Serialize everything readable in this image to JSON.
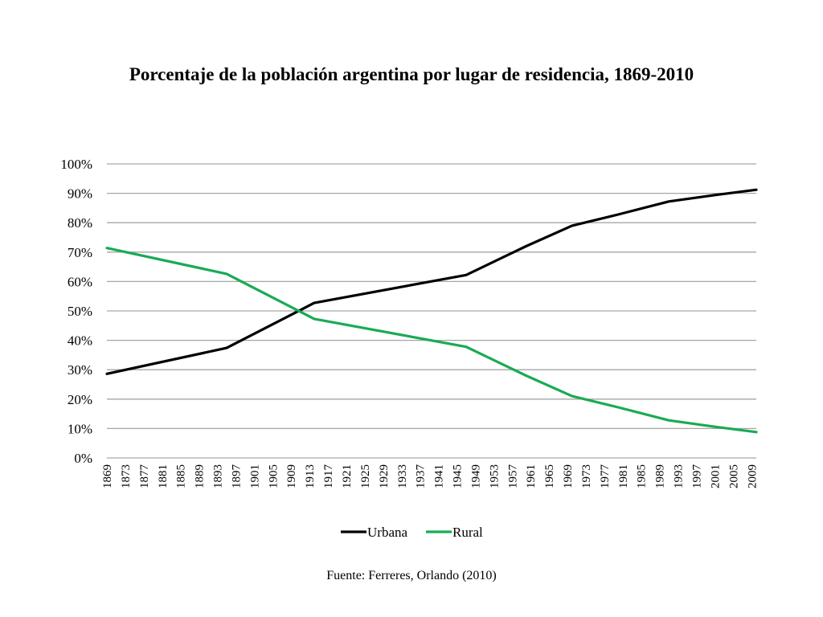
{
  "chart_data": {
    "type": "line",
    "title": "Porcentaje de la población argentina por lugar de residencia, 1869-2010",
    "source": "Fuente: Ferreres, Orlando (2010)",
    "xlabel": "",
    "ylabel": "",
    "ylim": [
      0,
      100
    ],
    "y_ticks": [
      "0%",
      "10%",
      "20%",
      "30%",
      "40%",
      "50%",
      "60%",
      "70%",
      "80%",
      "90%",
      "100%"
    ],
    "x_range": [
      1869,
      2010
    ],
    "x_ticks": [
      "1869",
      "1873",
      "1877",
      "1881",
      "1885",
      "1889",
      "1893",
      "1897",
      "1901",
      "1905",
      "1909",
      "1913",
      "1917",
      "1921",
      "1925",
      "1929",
      "1933",
      "1937",
      "1941",
      "1945",
      "1949",
      "1953",
      "1957",
      "1961",
      "1965",
      "1969",
      "1973",
      "1977",
      "1981",
      "1985",
      "1989",
      "1993",
      "1997",
      "2001",
      "2005",
      "2009"
    ],
    "grid": true,
    "legend_position": "bottom",
    "colors": {
      "Urbana": "#000000",
      "Rural": "#1aaa55",
      "grid": "#a6a6a6"
    },
    "series": [
      {
        "name": "Urbana",
        "x": [
          1869,
          1895,
          1914,
          1947,
          1960,
          1970,
          1980,
          1991,
          2001,
          2010
        ],
        "values": [
          28.6,
          37.4,
          52.7,
          62.2,
          72.0,
          79.0,
          82.8,
          87.2,
          89.4,
          91.2
        ]
      },
      {
        "name": "Rural",
        "x": [
          1869,
          1895,
          1914,
          1947,
          1960,
          1970,
          1980,
          1991,
          2001,
          2010
        ],
        "values": [
          71.4,
          62.6,
          47.3,
          37.8,
          28.0,
          21.0,
          17.2,
          12.8,
          10.6,
          8.8
        ]
      }
    ]
  }
}
